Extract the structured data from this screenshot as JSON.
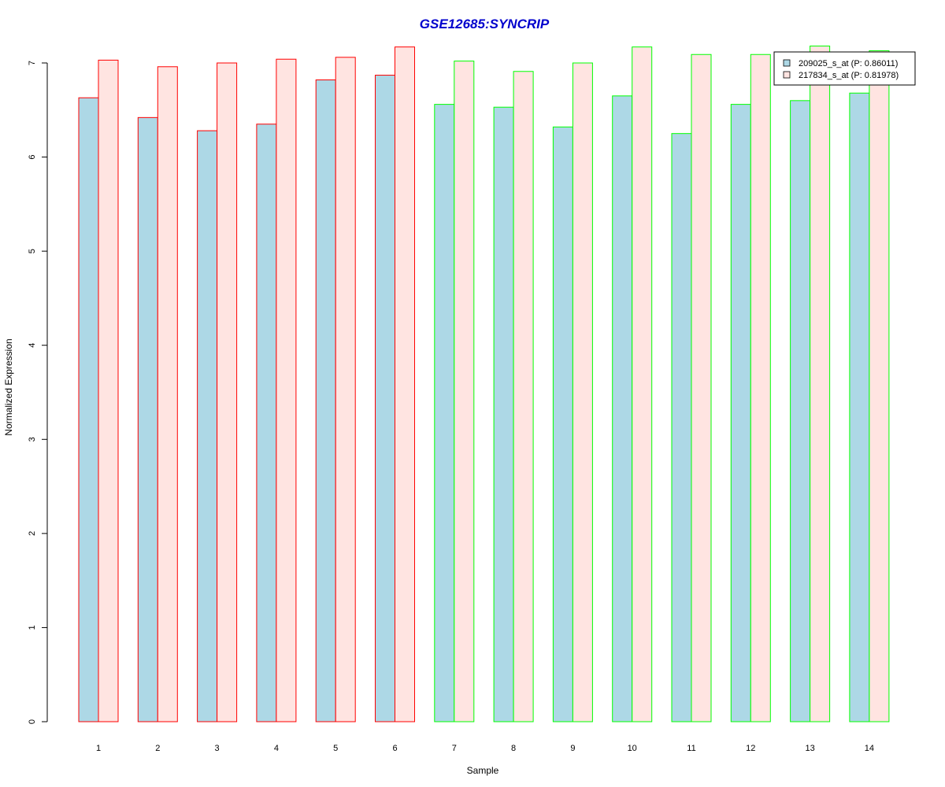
{
  "chart_data": {
    "type": "bar",
    "title": "GSE12685:SYNCRIP",
    "xlabel": "Sample",
    "ylabel": "Normalized Expression",
    "ylim": [
      0,
      7
    ],
    "yticks": [
      0,
      1,
      2,
      3,
      4,
      5,
      6,
      7
    ],
    "categories": [
      "1",
      "2",
      "3",
      "4",
      "5",
      "6",
      "7",
      "8",
      "9",
      "10",
      "11",
      "12",
      "13",
      "14"
    ],
    "series": [
      {
        "name": "209025_s_at (P: 0.86011)",
        "fill": "#add8e6",
        "values": [
          6.63,
          6.42,
          6.28,
          6.35,
          6.82,
          6.87,
          6.56,
          6.53,
          6.32,
          6.65,
          6.25,
          6.56,
          6.6,
          6.68
        ]
      },
      {
        "name": "217834_s_at (P: 0.81978)",
        "fill": "#ffe4e1",
        "values": [
          7.03,
          6.96,
          7.0,
          7.04,
          7.06,
          7.17,
          7.02,
          6.91,
          7.0,
          7.17,
          7.09,
          7.09,
          7.18,
          7.13
        ]
      }
    ],
    "group_border_colors": [
      "#ff0000",
      "#ff0000",
      "#ff0000",
      "#ff0000",
      "#ff0000",
      "#ff0000",
      "#00ff00",
      "#00ff00",
      "#00ff00",
      "#00ff00",
      "#00ff00",
      "#00ff00",
      "#00ff00",
      "#00ff00"
    ],
    "title_color": "#0000cd",
    "legend_position": "top-right",
    "grid": false
  }
}
